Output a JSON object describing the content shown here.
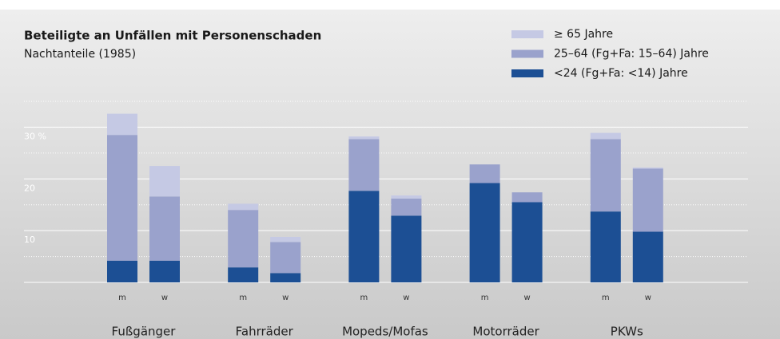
{
  "chart_data": {
    "type": "stacked_bar",
    "title": "Beteiligte an Unfällen mit Personenschaden",
    "subtitle": "Nachtanteile (1985)",
    "groups": [
      "Fußgänger",
      "Fahrräder",
      "Mopeds/Mofas",
      "Motorräder",
      "PKWs"
    ],
    "categories": [
      "m",
      "w",
      "m",
      "w",
      "m",
      "w",
      "m",
      "w",
      "m",
      "w"
    ],
    "series": [
      {
        "name": "<24 (Fg+Fa: <14) Jahre",
        "color": "#1c4f94",
        "values": [
          4.2,
          4.2,
          2.9,
          1.8,
          17.7,
          12.9,
          19.2,
          15.5,
          13.7,
          9.8
        ]
      },
      {
        "name": "25–64 (Fg+Fa: 15–64) Jahre",
        "color": "#9aa2cc",
        "values": [
          24.3,
          12.4,
          11.1,
          6.0,
          10.0,
          3.3,
          3.6,
          1.9,
          14.0,
          12.2
        ]
      },
      {
        "name": "≥ 65 Jahre",
        "color": "#c5c9e4",
        "values": [
          4.1,
          5.9,
          1.2,
          1.0,
          0.5,
          0.6,
          0,
          0,
          1.2,
          0.2
        ]
      }
    ],
    "ylim": [
      0,
      35
    ],
    "yticks": [
      10,
      20,
      {
        "value": 30,
        "label": "30 %"
      }
    ],
    "minor_yticks": [
      5,
      15,
      25,
      35
    ],
    "grid": true
  }
}
